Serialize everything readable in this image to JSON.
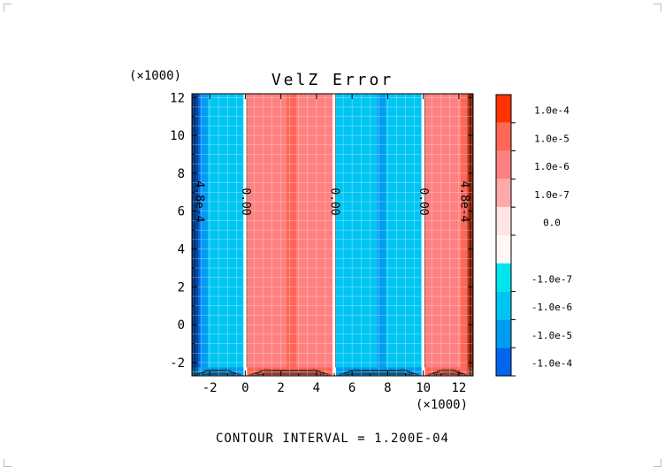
{
  "chart_data": {
    "type": "heatmap",
    "title": "VelZ Error",
    "x_multiplier_label": "(×1000)",
    "y_multiplier_label": "(×1000)",
    "xlim": [
      -3,
      12.8
    ],
    "ylim": [
      -2.7,
      12.2
    ],
    "x_ticks": [
      -2,
      0,
      2,
      4,
      6,
      8,
      10,
      12
    ],
    "y_ticks": [
      -2,
      0,
      2,
      4,
      6,
      8,
      10,
      12
    ],
    "x_tick_labels": [
      "-2",
      "0",
      "2",
      "4",
      "6",
      "8",
      "10",
      "12"
    ],
    "y_tick_labels": [
      "-2",
      "0",
      "2",
      "4",
      "6",
      "8",
      "10",
      "12"
    ],
    "grid": true,
    "bands": [
      {
        "x0": -3,
        "x1": -2.5,
        "level": -4
      },
      {
        "x0": -2.5,
        "x1": -2.1,
        "level": -3
      },
      {
        "x0": -2.1,
        "x1": -0.1,
        "level": -2
      },
      {
        "x0": -0.1,
        "x1": 0.1,
        "level": 0
      },
      {
        "x0": 0.1,
        "x1": 2.3,
        "level": 2
      },
      {
        "x0": 2.3,
        "x1": 2.9,
        "level": 3
      },
      {
        "x0": 2.9,
        "x1": 4.9,
        "level": 2
      },
      {
        "x0": 4.9,
        "x1": 5.1,
        "level": 0
      },
      {
        "x0": 5.1,
        "x1": 7.4,
        "level": -2
      },
      {
        "x0": 7.4,
        "x1": 7.9,
        "level": -3
      },
      {
        "x0": 7.9,
        "x1": 9.9,
        "level": -2
      },
      {
        "x0": 9.9,
        "x1": 10.1,
        "level": 0
      },
      {
        "x0": 10.1,
        "x1": 12.1,
        "level": 2
      },
      {
        "x0": 12.1,
        "x1": 12.5,
        "level": 3
      },
      {
        "x0": 12.5,
        "x1": 12.8,
        "level": 4
      }
    ],
    "contour_labels": [
      {
        "x": 0,
        "y": 6.5,
        "text": "0.00"
      },
      {
        "x": 5,
        "y": 6.5,
        "text": "0.00"
      },
      {
        "x": 10,
        "y": 6.5,
        "text": "0.00"
      },
      {
        "x": -2.6,
        "y": 6.5,
        "text": "4.8e-4"
      },
      {
        "x": 12.3,
        "y": 6.5,
        "text": "4.8e-4"
      }
    ],
    "colorbar": {
      "levels": [
        {
          "label": "1.0e-4",
          "color": "#ff3300"
        },
        {
          "label": "1.0e-5",
          "color": "#ff6655"
        },
        {
          "label": "1.0e-6",
          "color": "#ff8080"
        },
        {
          "label": "1.0e-7",
          "color": "#ffaaaa"
        },
        {
          "label": "0.0",
          "color": "#ffe4e4"
        },
        {
          "label": "",
          "color": "#fff6f6"
        },
        {
          "label": "-1.0e-7",
          "color": "#00e5ee"
        },
        {
          "label": "-1.0e-6",
          "color": "#00c5f2"
        },
        {
          "label": "-1.0e-5",
          "color": "#009cf0"
        },
        {
          "label": "-1.0e-4",
          "color": "#0066ee"
        }
      ],
      "top_color": "#ff3300",
      "bottom_color": "#0055e8"
    },
    "level_colors": {
      "4": "#ff3300",
      "3": "#ff6655",
      "2": "#ff8080",
      "0": "#ffffff",
      "-2": "#00c5f2",
      "-3": "#009cf0",
      "-4": "#0066ee"
    },
    "footer": "CONTOUR INTERVAL = 1.200E-04"
  }
}
